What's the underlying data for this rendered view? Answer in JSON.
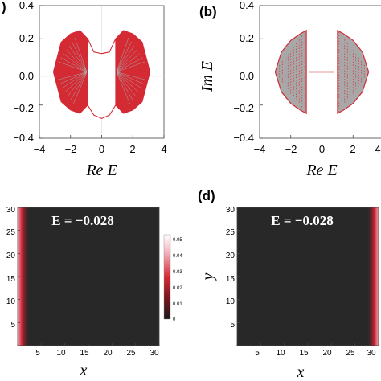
{
  "panel_labels": {
    "a": ")",
    "b": "(b)",
    "d": "(d)"
  },
  "colors": {
    "spectrum": "#d42a34",
    "spectrum_inner": "#a8a8a8",
    "heatmap_dark": "#282828",
    "heatmap_edge": "#cc2233",
    "heatmap_high": "#ffffff"
  },
  "chart_data": [
    {
      "panel": "a",
      "type": "scatter",
      "xlabel": "Re E",
      "ylabel": "",
      "xlim": [
        -4,
        4
      ],
      "ylim": [
        -0.4,
        0.4
      ],
      "x_ticks": [
        "−4",
        "−2",
        "0",
        "2",
        "4"
      ],
      "y_ticks": [
        "0.4",
        "0.2",
        "0.0",
        "−0.2",
        "−0.4"
      ],
      "series": [
        {
          "values": [
            [
              -3.1,
              0.0
            ],
            [
              -2.6,
              0.18
            ],
            [
              -2.0,
              0.23
            ],
            [
              -1.4,
              0.25
            ],
            [
              -0.9,
              0.2
            ],
            [
              -0.5,
              0.12
            ],
            [
              0.0,
              0.11
            ],
            [
              0.5,
              0.12
            ],
            [
              0.9,
              0.2
            ],
            [
              1.4,
              0.25
            ],
            [
              2.0,
              0.23
            ],
            [
              2.6,
              0.18
            ],
            [
              3.1,
              0.0
            ],
            [
              2.6,
              -0.18
            ],
            [
              2.0,
              -0.23
            ],
            [
              1.4,
              -0.25
            ],
            [
              0.9,
              -0.2
            ],
            [
              0.5,
              -0.26
            ],
            [
              0.0,
              -0.28
            ],
            [
              -0.5,
              -0.26
            ],
            [
              -0.9,
              -0.2
            ],
            [
              -1.4,
              -0.25
            ],
            [
              -2.0,
              -0.23
            ],
            [
              -2.6,
              -0.18
            ]
          ]
        }
      ]
    },
    {
      "panel": "b",
      "type": "scatter",
      "xlabel": "Re E",
      "ylabel": "Im E",
      "xlim": [
        -4,
        4
      ],
      "ylim": [
        -0.4,
        0.4
      ],
      "x_ticks": [
        "−4",
        "−2",
        "0",
        "2",
        "4"
      ],
      "y_ticks": [
        "0.4",
        "0.2",
        "0.0",
        "−0.2",
        "−0.4"
      ],
      "series": [
        {
          "values": [
            [
              -3.0,
              0.0
            ],
            [
              -2.6,
              0.12
            ],
            [
              -2.0,
              0.19
            ],
            [
              -1.4,
              0.23
            ],
            [
              -1.0,
              0.25
            ],
            [
              -1.0,
              -0.25
            ],
            [
              -1.4,
              -0.23
            ],
            [
              -2.0,
              -0.19
            ],
            [
              -2.6,
              -0.12
            ],
            [
              1.0,
              0.25
            ],
            [
              1.4,
              0.23
            ],
            [
              2.0,
              0.19
            ],
            [
              2.6,
              0.12
            ],
            [
              3.0,
              0.0
            ],
            [
              2.6,
              -0.12
            ],
            [
              2.0,
              -0.19
            ],
            [
              1.4,
              -0.23
            ],
            [
              1.0,
              -0.25
            ],
            [
              -0.8,
              0.0
            ],
            [
              0.8,
              0.0
            ]
          ]
        }
      ]
    },
    {
      "panel": "c",
      "type": "heatmap",
      "xlabel": "x",
      "ylabel": "",
      "annotation": "E = −0.028",
      "xlim": [
        0,
        30
      ],
      "ylim": [
        0,
        30
      ],
      "x_ticks": [
        "5",
        "10",
        "15",
        "20",
        "25",
        "30"
      ],
      "y_ticks": [
        "30",
        "25",
        "20",
        "15",
        "10",
        "5"
      ],
      "colorbar_ticks": [
        "0.05",
        "0.04",
        "0.03",
        "0.02",
        "0.01",
        "0"
      ],
      "colorbar_range": [
        0,
        0.05
      ],
      "edge_localized": "left"
    },
    {
      "panel": "d",
      "type": "heatmap",
      "xlabel": "x",
      "ylabel": "y",
      "annotation": "E = −0.028",
      "xlim": [
        0,
        30
      ],
      "ylim": [
        0,
        30
      ],
      "x_ticks": [
        "5",
        "10",
        "15",
        "20",
        "25",
        "30"
      ],
      "y_ticks": [
        "30",
        "25",
        "20",
        "15",
        "10",
        "5"
      ],
      "edge_localized": "right"
    }
  ]
}
